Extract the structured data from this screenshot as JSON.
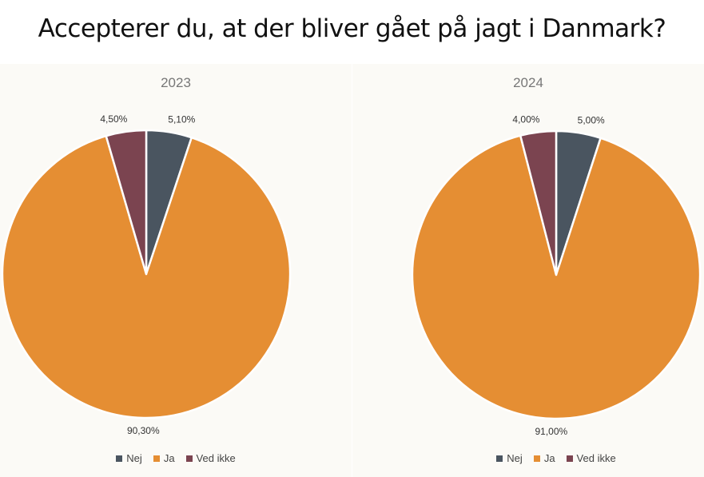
{
  "title": "Accepterer du, at der bliver gået på jagt i Danmark?",
  "chart_data": [
    {
      "type": "pie",
      "title": "2023",
      "categories": [
        "Nej",
        "Ja",
        "Ved ikke"
      ],
      "values": [
        5.1,
        90.3,
        4.5
      ],
      "data_labels": [
        "5,10%",
        "90,30%",
        "4,50%"
      ],
      "colors": [
        "#4a5560",
        "#e58e33",
        "#7b4450"
      ],
      "legend_position": "bottom"
    },
    {
      "type": "pie",
      "title": "2024",
      "categories": [
        "Nej",
        "Ja",
        "Ved ikke"
      ],
      "values": [
        5.0,
        91.0,
        4.0
      ],
      "data_labels": [
        "5,00%",
        "91,00%",
        "4,00%"
      ],
      "colors": [
        "#4a5560",
        "#e58e33",
        "#7b4450"
      ],
      "legend_position": "bottom"
    }
  ]
}
